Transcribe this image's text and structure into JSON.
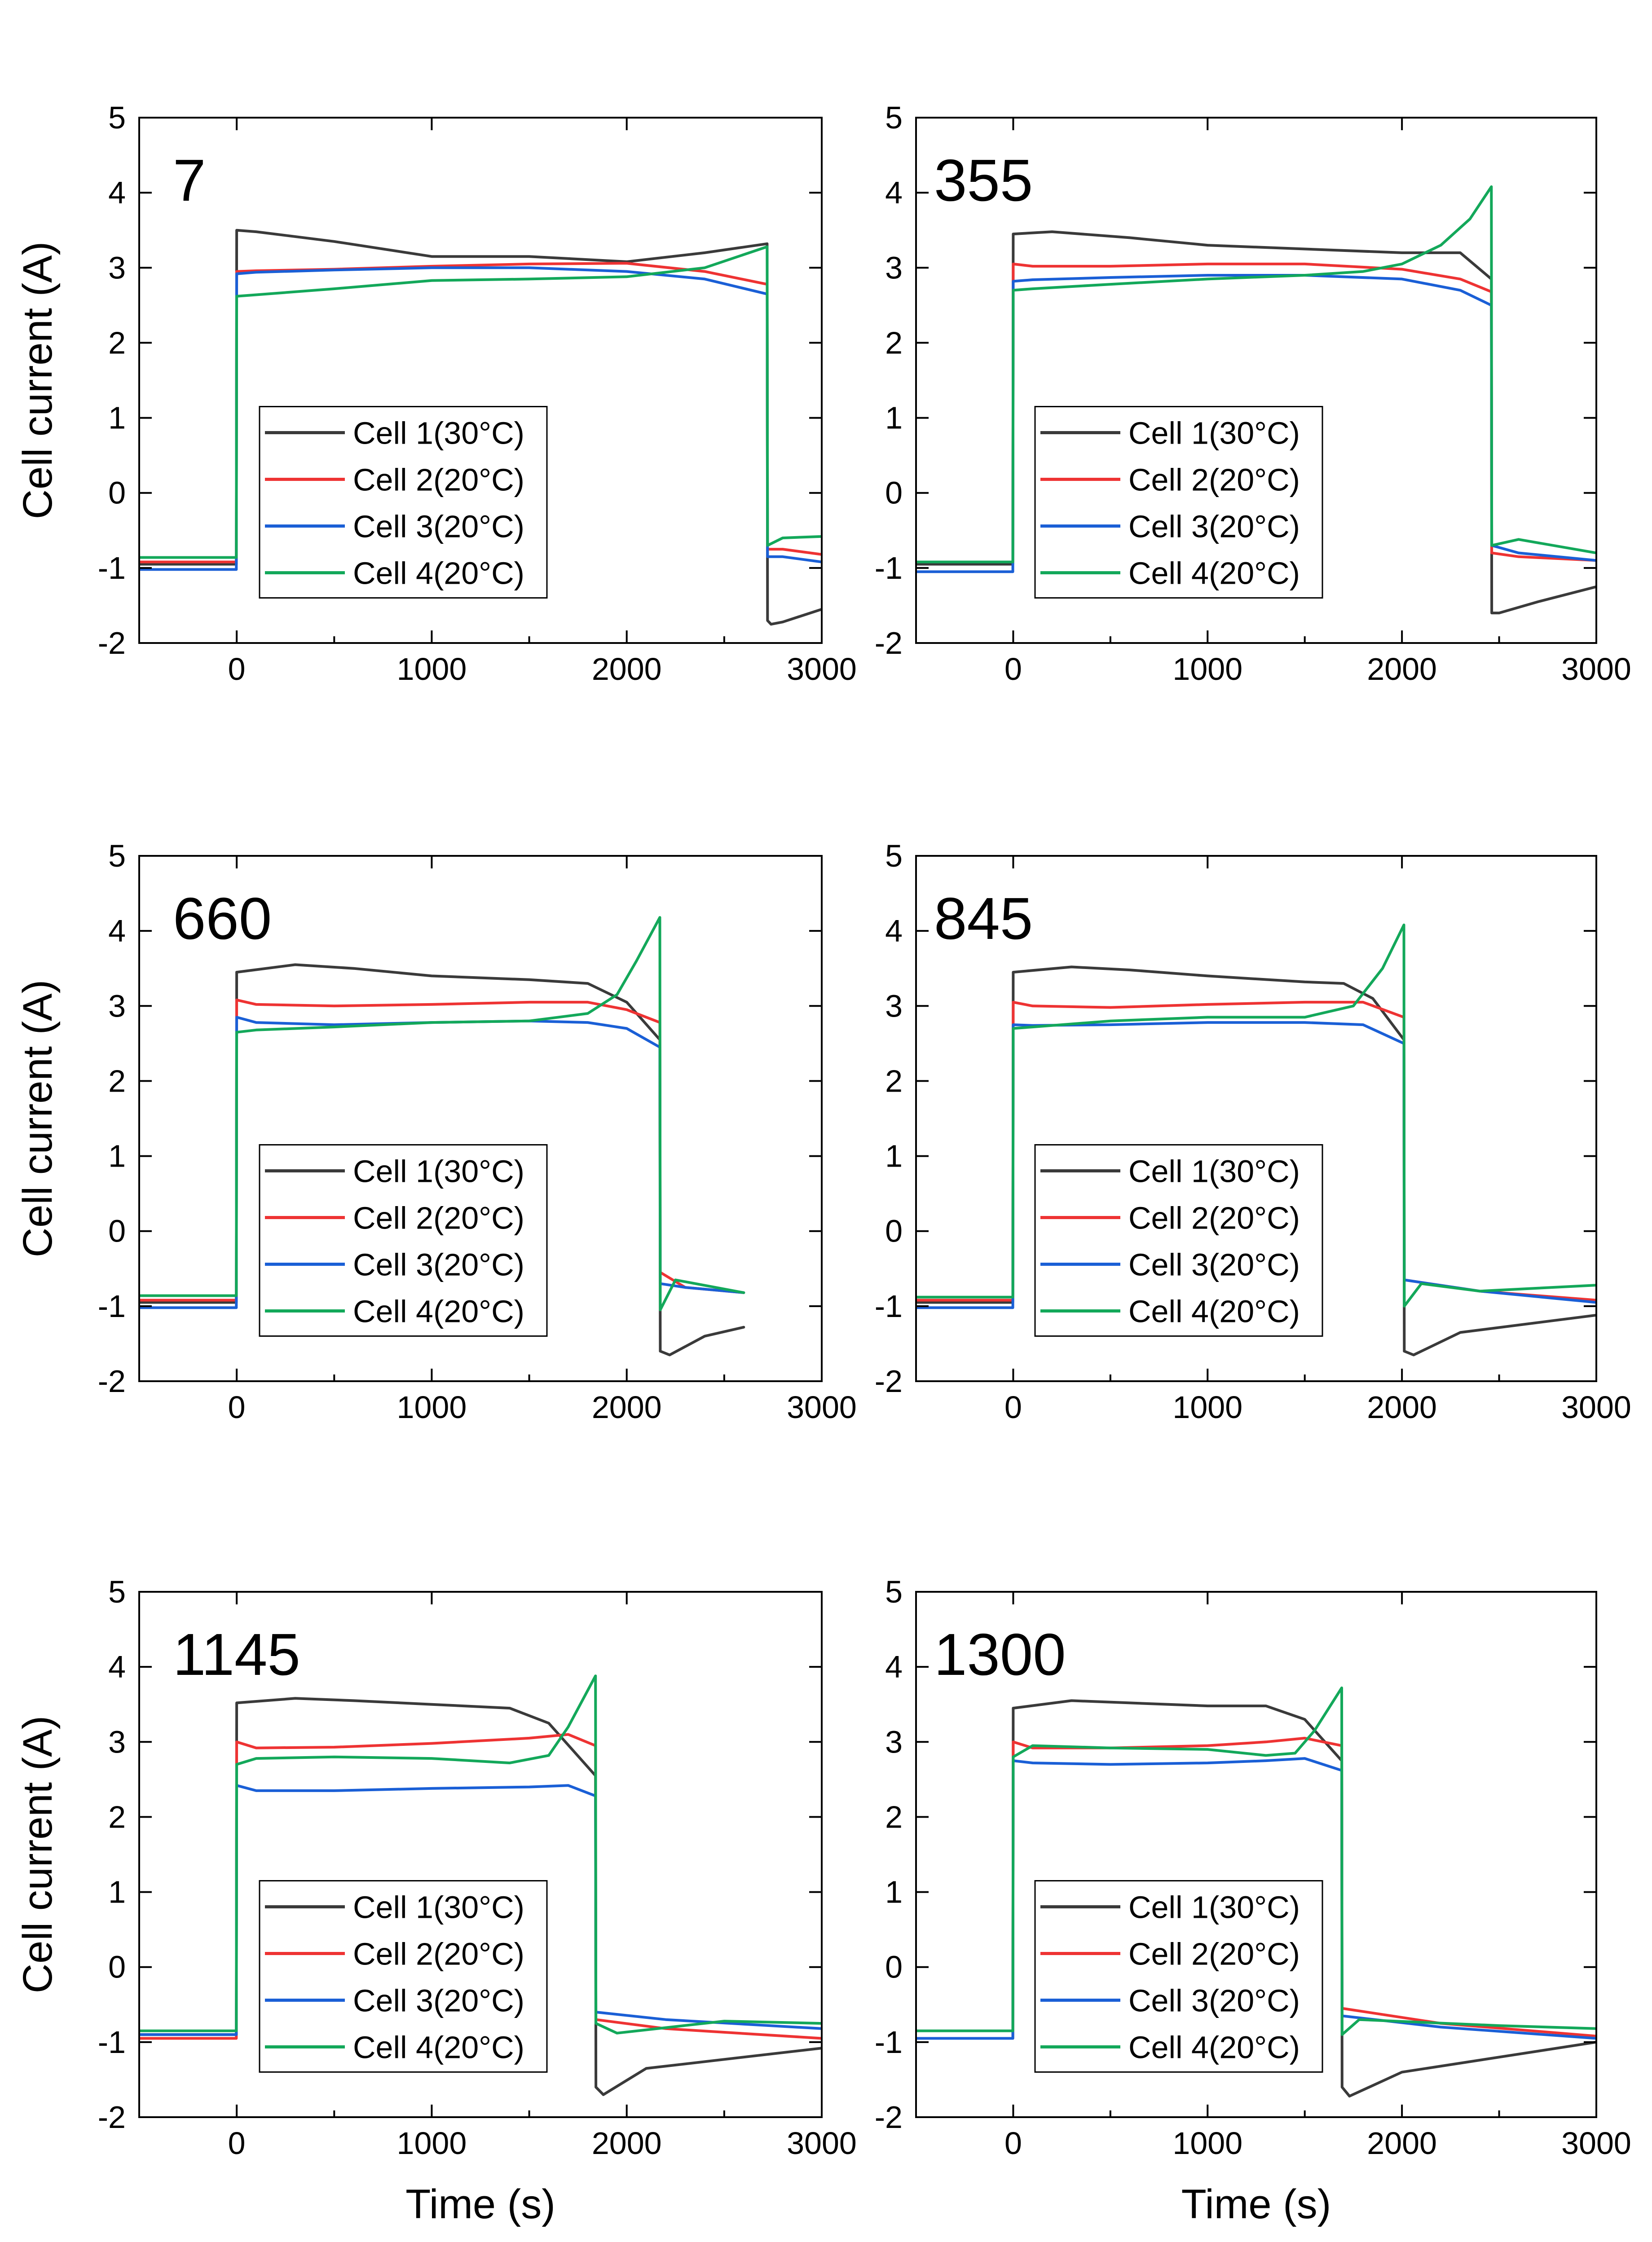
{
  "chart_data": {
    "type": "line",
    "layout": "3 rows x 2 columns",
    "ylabel": "Cell current (A)",
    "xlabel": "Time (s)",
    "xlim": [
      -500,
      3000
    ],
    "ylim": [
      -2,
      5
    ],
    "xticks": [
      0,
      1000,
      2000,
      3000
    ],
    "yticks": [
      -2,
      -1,
      0,
      1,
      2,
      3,
      4,
      5
    ],
    "grid": false,
    "legend_position": "lower-left inside",
    "colors": {
      "Cell 1(30°C)": "#3a3a3a",
      "Cell 2(20°C)": "#ee3333",
      "Cell 3(20°C)": "#1a5fd6",
      "Cell 4(20°C)": "#13a85a"
    },
    "legend_entries": [
      "Cell 1(30°C)",
      "Cell 2(20°C)",
      "Cell 3(20°C)",
      "Cell 4(20°C)"
    ],
    "panels": [
      {
        "label": "7",
        "series": [
          {
            "name": "Cell 1(30°C)",
            "x": [
              -500,
              -2,
              0,
              100,
              500,
              1000,
              1500,
              2000,
              2400,
              2720,
              2722,
              2740,
              2800,
              3000
            ],
            "y": [
              -0.95,
              -0.95,
              3.5,
              3.48,
              3.35,
              3.15,
              3.15,
              3.08,
              3.2,
              3.32,
              -1.7,
              -1.75,
              -1.72,
              -1.55
            ]
          },
          {
            "name": "Cell 2(20°C)",
            "x": [
              -500,
              -2,
              0,
              100,
              500,
              1000,
              1500,
              2000,
              2400,
              2720,
              2722,
              2800,
              3000
            ],
            "y": [
              -0.92,
              -0.92,
              2.95,
              2.96,
              2.98,
              3.02,
              3.05,
              3.06,
              2.95,
              2.78,
              -0.75,
              -0.75,
              -0.82
            ]
          },
          {
            "name": "Cell 3(20°C)",
            "x": [
              -500,
              -2,
              0,
              100,
              500,
              1000,
              1500,
              2000,
              2400,
              2720,
              2722,
              2800,
              3000
            ],
            "y": [
              -1.02,
              -1.02,
              2.92,
              2.94,
              2.97,
              3.0,
              3.0,
              2.95,
              2.85,
              2.65,
              -0.85,
              -0.85,
              -0.92
            ]
          },
          {
            "name": "Cell 4(20°C)",
            "x": [
              -500,
              -2,
              0,
              100,
              500,
              1000,
              1500,
              2000,
              2400,
              2720,
              2722,
              2800,
              3000
            ],
            "y": [
              -0.86,
              -0.86,
              2.62,
              2.64,
              2.72,
              2.83,
              2.85,
              2.88,
              3.0,
              3.28,
              -0.7,
              -0.6,
              -0.58
            ]
          }
        ]
      },
      {
        "label": "355",
        "series": [
          {
            "name": "Cell 1(30°C)",
            "x": [
              -500,
              -2,
              0,
              200,
              600,
              1000,
              1500,
              2000,
              2300,
              2460,
              2462,
              2500,
              2700,
              3000
            ],
            "y": [
              -0.95,
              -0.95,
              3.45,
              3.48,
              3.4,
              3.3,
              3.25,
              3.2,
              3.2,
              2.85,
              -1.6,
              -1.6,
              -1.45,
              -1.25
            ]
          },
          {
            "name": "Cell 2(20°C)",
            "x": [
              -500,
              -2,
              0,
              100,
              500,
              1000,
              1500,
              2000,
              2300,
              2460,
              2462,
              2600,
              3000
            ],
            "y": [
              -0.92,
              -0.92,
              3.05,
              3.02,
              3.02,
              3.05,
              3.05,
              2.98,
              2.85,
              2.68,
              -0.8,
              -0.85,
              -0.9
            ]
          },
          {
            "name": "Cell 3(20°C)",
            "x": [
              -500,
              -2,
              0,
              100,
              500,
              1000,
              1500,
              2000,
              2300,
              2460,
              2462,
              2600,
              3000
            ],
            "y": [
              -1.05,
              -1.05,
              2.82,
              2.84,
              2.87,
              2.9,
              2.9,
              2.85,
              2.7,
              2.5,
              -0.7,
              -0.8,
              -0.9
            ]
          },
          {
            "name": "Cell 4(20°C)",
            "x": [
              -500,
              -2,
              0,
              100,
              500,
              1000,
              1500,
              1800,
              2000,
              2200,
              2350,
              2460,
              2462,
              2600,
              3000
            ],
            "y": [
              -0.92,
              -0.92,
              2.7,
              2.72,
              2.78,
              2.85,
              2.9,
              2.95,
              3.05,
              3.3,
              3.65,
              4.08,
              -0.7,
              -0.62,
              -0.8
            ]
          }
        ]
      },
      {
        "label": "660",
        "series": [
          {
            "name": "Cell 1(30°C)",
            "x": [
              -500,
              -2,
              0,
              300,
              600,
              1000,
              1500,
              1800,
              2000,
              2170,
              2172,
              2220,
              2400,
              2600
            ],
            "y": [
              -0.95,
              -0.95,
              3.45,
              3.55,
              3.5,
              3.4,
              3.35,
              3.3,
              3.05,
              2.55,
              -1.6,
              -1.65,
              -1.4,
              -1.28
            ]
          },
          {
            "name": "Cell 2(20°C)",
            "x": [
              -500,
              -2,
              0,
              100,
              500,
              1000,
              1500,
              1800,
              2000,
              2170,
              2172,
              2300,
              2600
            ],
            "y": [
              -0.92,
              -0.92,
              3.08,
              3.02,
              3.0,
              3.02,
              3.05,
              3.05,
              2.95,
              2.78,
              -0.55,
              -0.75,
              -0.82
            ]
          },
          {
            "name": "Cell 3(20°C)",
            "x": [
              -500,
              -2,
              0,
              100,
              500,
              1000,
              1500,
              1800,
              2000,
              2170,
              2172,
              2300,
              2600
            ],
            "y": [
              -1.02,
              -1.02,
              2.85,
              2.78,
              2.75,
              2.78,
              2.8,
              2.78,
              2.7,
              2.45,
              -0.7,
              -0.75,
              -0.82
            ]
          },
          {
            "name": "Cell 4(20°C)",
            "x": [
              -500,
              -2,
              0,
              100,
              500,
              1000,
              1500,
              1800,
              1950,
              2050,
              2170,
              2172,
              2250,
              2600
            ],
            "y": [
              -0.86,
              -0.86,
              2.65,
              2.68,
              2.72,
              2.78,
              2.8,
              2.9,
              3.15,
              3.6,
              4.18,
              -1.05,
              -0.65,
              -0.82
            ]
          }
        ]
      },
      {
        "label": "845",
        "series": [
          {
            "name": "Cell 1(30°C)",
            "x": [
              -500,
              -2,
              0,
              300,
              600,
              1000,
              1500,
              1700,
              1850,
              2010,
              2012,
              2060,
              2300,
              3000
            ],
            "y": [
              -0.95,
              -0.95,
              3.45,
              3.52,
              3.48,
              3.4,
              3.32,
              3.3,
              3.1,
              2.55,
              -1.6,
              -1.65,
              -1.35,
              -1.12
            ]
          },
          {
            "name": "Cell 2(20°C)",
            "x": [
              -500,
              -2,
              0,
              100,
              500,
              1000,
              1500,
              1800,
              2010,
              2012,
              2400,
              3000
            ],
            "y": [
              -0.92,
              -0.92,
              3.05,
              3.0,
              2.98,
              3.02,
              3.05,
              3.05,
              2.85,
              -0.65,
              -0.8,
              -0.92
            ]
          },
          {
            "name": "Cell 3(20°C)",
            "x": [
              -500,
              -2,
              0,
              100,
              500,
              1000,
              1500,
              1800,
              2010,
              2012,
              2400,
              3000
            ],
            "y": [
              -1.02,
              -1.02,
              2.75,
              2.74,
              2.75,
              2.78,
              2.78,
              2.75,
              2.5,
              -0.65,
              -0.8,
              -0.95
            ]
          },
          {
            "name": "Cell 4(20°C)",
            "x": [
              -500,
              -2,
              0,
              100,
              500,
              1000,
              1500,
              1750,
              1900,
              2010,
              2012,
              2100,
              2400,
              3000
            ],
            "y": [
              -0.88,
              -0.88,
              2.7,
              2.72,
              2.8,
              2.85,
              2.85,
              3.0,
              3.5,
              4.08,
              -1.0,
              -0.7,
              -0.8,
              -0.72
            ]
          }
        ]
      },
      {
        "label": "1145",
        "series": [
          {
            "name": "Cell 1(30°C)",
            "x": [
              -500,
              -2,
              0,
              300,
              600,
              1000,
              1400,
              1600,
              1840,
              1842,
              1880,
              2100,
              3000
            ],
            "y": [
              -0.9,
              -0.9,
              3.52,
              3.58,
              3.55,
              3.5,
              3.45,
              3.25,
              2.55,
              -1.6,
              -1.7,
              -1.35,
              -1.08
            ]
          },
          {
            "name": "Cell 2(20°C)",
            "x": [
              -500,
              -2,
              0,
              100,
              500,
              1000,
              1500,
              1700,
              1840,
              1842,
              2200,
              3000
            ],
            "y": [
              -0.95,
              -0.95,
              3.0,
              2.92,
              2.93,
              2.98,
              3.05,
              3.1,
              2.95,
              -0.7,
              -0.82,
              -0.95
            ]
          },
          {
            "name": "Cell 3(20°C)",
            "x": [
              -500,
              -2,
              0,
              100,
              500,
              1000,
              1500,
              1700,
              1840,
              1842,
              2200,
              3000
            ],
            "y": [
              -0.9,
              -0.9,
              2.42,
              2.35,
              2.35,
              2.38,
              2.4,
              2.42,
              2.28,
              -0.6,
              -0.7,
              -0.82
            ]
          },
          {
            "name": "Cell 4(20°C)",
            "x": [
              -500,
              -2,
              0,
              100,
              500,
              1000,
              1400,
              1600,
              1700,
              1840,
              1842,
              1950,
              2500,
              3000
            ],
            "y": [
              -0.85,
              -0.85,
              2.7,
              2.78,
              2.8,
              2.78,
              2.72,
              2.82,
              3.2,
              3.88,
              -0.75,
              -0.88,
              -0.72,
              -0.75
            ]
          }
        ]
      },
      {
        "label": "1300",
        "series": [
          {
            "name": "Cell 1(30°C)",
            "x": [
              -500,
              -2,
              0,
              300,
              600,
              1000,
              1300,
              1500,
              1690,
              1692,
              1730,
              2000,
              3000
            ],
            "y": [
              -0.95,
              -0.95,
              3.45,
              3.55,
              3.52,
              3.48,
              3.48,
              3.3,
              2.75,
              -1.6,
              -1.72,
              -1.4,
              -1.0
            ]
          },
          {
            "name": "Cell 2(20°C)",
            "x": [
              -500,
              -2,
              0,
              100,
              500,
              1000,
              1300,
              1500,
              1690,
              1692,
              2200,
              3000
            ],
            "y": [
              -0.95,
              -0.95,
              3.0,
              2.92,
              2.92,
              2.95,
              3.0,
              3.05,
              2.95,
              -0.55,
              -0.75,
              -0.92
            ]
          },
          {
            "name": "Cell 3(20°C)",
            "x": [
              -500,
              -2,
              0,
              100,
              500,
              1000,
              1300,
              1500,
              1690,
              1692,
              2200,
              3000
            ],
            "y": [
              -0.95,
              -0.95,
              2.75,
              2.72,
              2.7,
              2.72,
              2.75,
              2.78,
              2.62,
              -0.65,
              -0.8,
              -0.95
            ]
          },
          {
            "name": "Cell 4(20°C)",
            "x": [
              -500,
              -2,
              0,
              100,
              500,
              1000,
              1300,
              1450,
              1550,
              1690,
              1692,
              1780,
              2500,
              3000
            ],
            "y": [
              -0.85,
              -0.85,
              2.8,
              2.95,
              2.92,
              2.9,
              2.82,
              2.85,
              3.15,
              3.72,
              -0.9,
              -0.7,
              -0.78,
              -0.82
            ]
          }
        ]
      }
    ]
  }
}
